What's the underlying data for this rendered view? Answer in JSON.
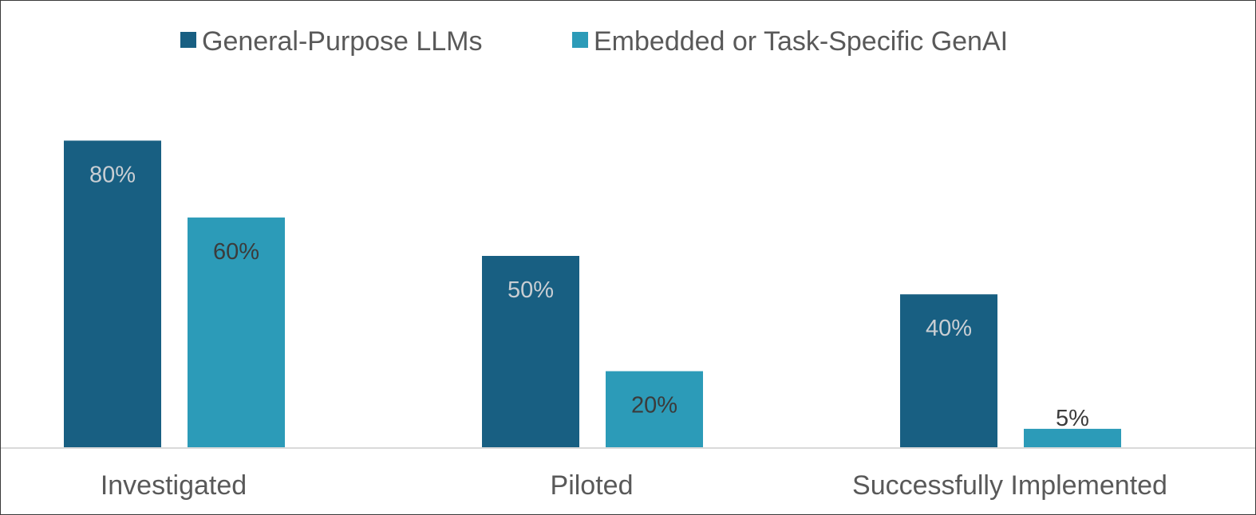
{
  "chart_data": {
    "type": "bar",
    "categories": [
      "Investigated",
      "Piloted",
      "Successfully Implemented"
    ],
    "series": [
      {
        "name": "General-Purpose LLMs",
        "values": [
          80,
          50,
          40
        ],
        "labels": [
          "80%",
          "50%",
          "40%"
        ],
        "color": "#185f82",
        "label_color": "#c9ced3"
      },
      {
        "name": "Embedded or Task-Specific GenAI",
        "values": [
          60,
          20,
          5
        ],
        "labels": [
          "60%",
          "20%",
          "5%"
        ],
        "color": "#2c9bb8",
        "label_color": "#3b3b3b"
      }
    ],
    "ylim": [
      0,
      100
    ],
    "grid": false,
    "legend": "top-center",
    "axis_color": "#d9d9d9"
  }
}
